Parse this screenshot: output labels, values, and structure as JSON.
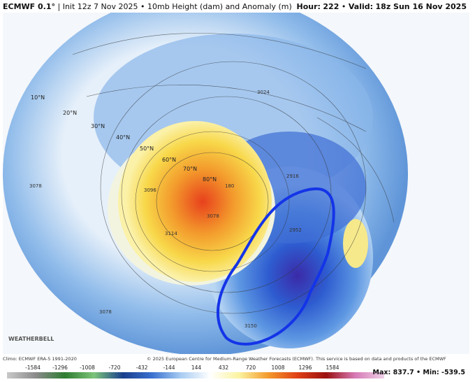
{
  "header": {
    "model": "ECMWF 0.1°",
    "init": "Init 12z 7 Nov 2025",
    "product": "10mb Height (dam) and Anomaly (m)",
    "hour_label": "Hour:",
    "hour": "222",
    "valid_label": "Valid:",
    "valid": "18z Sun 16 Nov 2025"
  },
  "latitudes": [
    "10°N",
    "20°N",
    "30°N",
    "40°N",
    "50°N",
    "60°N",
    "70°N",
    "80°N"
  ],
  "contour_labels": [
    "3024",
    "3078",
    "3096",
    "3114",
    "3078",
    "2916",
    "2952",
    "3078",
    "180",
    "3150"
  ],
  "watermark": "WEATHERBELL",
  "footer": {
    "climo": "Climo: ECMWF ERA-5 1991-2020",
    "copyright": "© 2025 European Centre for Medium-Range Weather Forecasts (ECMWF). This service is based on data and products of the ECMWF",
    "max_label": "Max:",
    "max": 837.7,
    "min_label": "Min:",
    "min": -539.5
  },
  "colorbar": {
    "ticks": [
      -1584,
      -1296,
      -1008,
      -720,
      -432,
      -144,
      144,
      432,
      720,
      1008,
      1296,
      1584
    ]
  }
}
